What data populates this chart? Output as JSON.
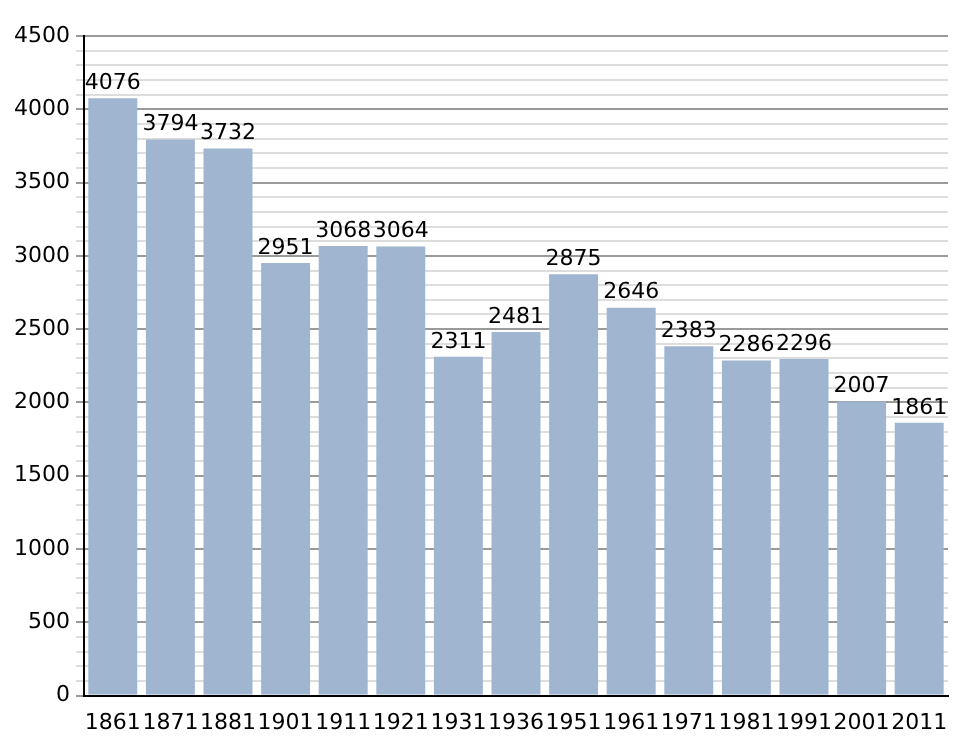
{
  "chart_data": {
    "type": "bar",
    "categories": [
      "1861",
      "1871",
      "1881",
      "1901",
      "1911",
      "1921",
      "1931",
      "1936",
      "1951",
      "1961",
      "1971",
      "1981",
      "1991",
      "2001",
      "2011"
    ],
    "values": [
      4076,
      3794,
      3732,
      2951,
      3068,
      3064,
      2311,
      2481,
      2875,
      2646,
      2383,
      2286,
      2296,
      2007,
      1861
    ],
    "color": "#a0b5d0",
    "ylim": [
      0,
      4500
    ],
    "yticks": [
      0,
      {
        "value": 100,
        "label": null
      },
      {
        "value": 200,
        "label": null
      },
      {
        "value": 300,
        "label": null
      },
      {
        "value": 400,
        "label": null
      },
      500,
      {
        "value": 600,
        "label": null
      },
      {
        "value": 700,
        "label": null
      },
      {
        "value": 800,
        "label": null
      },
      {
        "value": 900,
        "label": null
      },
      1000,
      {
        "value": 1100,
        "label": null
      },
      {
        "value": 1200,
        "label": null
      },
      {
        "value": 1300,
        "label": null
      },
      {
        "value": 1400,
        "label": null
      },
      1500,
      {
        "value": 1600,
        "label": null
      },
      {
        "value": 1700,
        "label": null
      },
      {
        "value": 1800,
        "label": null
      },
      {
        "value": 1900,
        "label": null
      },
      2000,
      {
        "value": 2100,
        "label": null
      },
      {
        "value": 2200,
        "label": null
      },
      {
        "value": 2300,
        "label": null
      },
      {
        "value": 2400,
        "label": null
      },
      2500,
      {
        "value": 2600,
        "label": null
      },
      {
        "value": 2700,
        "label": null
      },
      {
        "value": 2800,
        "label": null
      },
      {
        "value": 2900,
        "label": null
      },
      3000,
      {
        "value": 3100,
        "label": null
      },
      {
        "value": 3200,
        "label": null
      },
      {
        "value": 3300,
        "label": null
      },
      {
        "value": 3400,
        "label": null
      },
      3500,
      {
        "value": 3600,
        "label": null
      },
      {
        "value": 3700,
        "label": null
      },
      {
        "value": 3800,
        "label": null
      },
      {
        "value": 3900,
        "label": null
      },
      4000,
      {
        "value": 4100,
        "label": null
      },
      {
        "value": 4200,
        "label": null
      },
      {
        "value": 4300,
        "label": null
      },
      {
        "value": 4400,
        "label": null
      },
      4500
    ],
    "grid": "y",
    "data_labels": true
  }
}
